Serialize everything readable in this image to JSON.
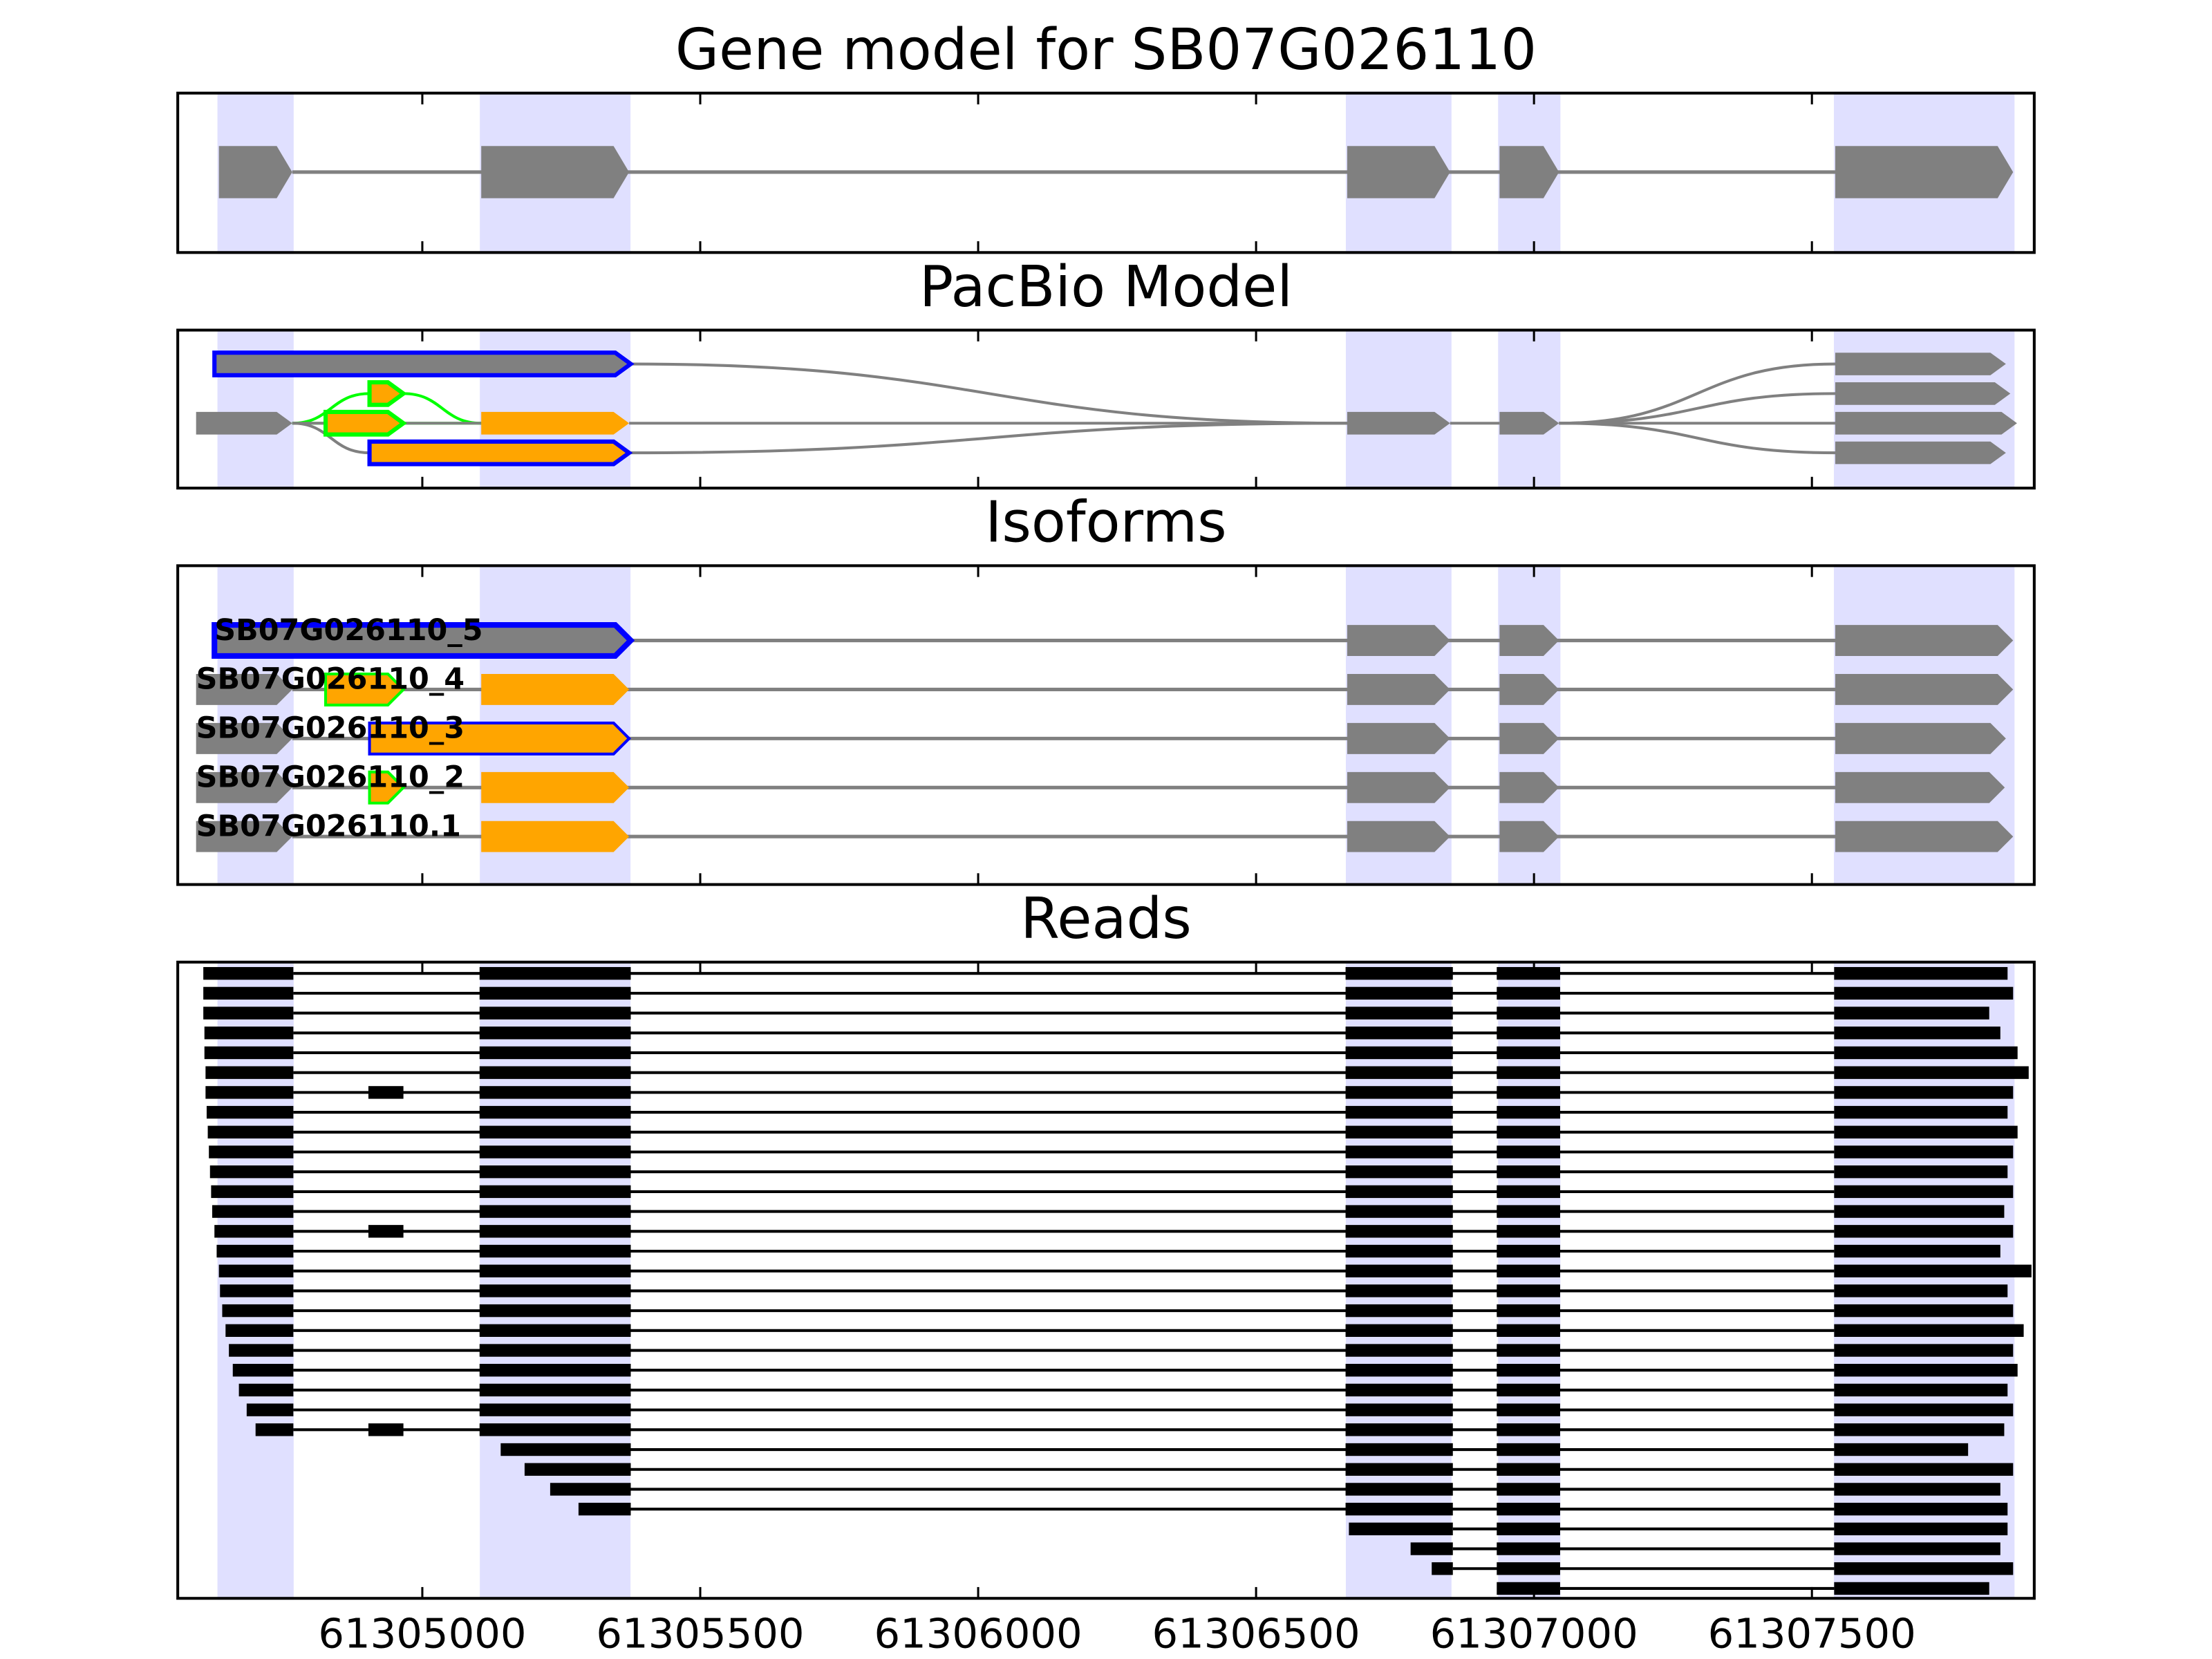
{
  "chart_data": {
    "type": "gene_track",
    "xlim": [
      61304560,
      61307900
    ],
    "xticks": [
      61305000,
      61305500,
      61306000,
      61306500,
      61307000,
      61307500
    ],
    "shade_color": "#e0e0ff",
    "gene_model": {
      "title": "Gene model for SB07G026110",
      "color": "#808080",
      "exons": [
        {
          "start": 61304634,
          "end": 61304766
        },
        {
          "start": 61305106,
          "end": 61305372
        },
        {
          "start": 61306664,
          "end": 61306849
        },
        {
          "start": 61306938,
          "end": 61307045
        },
        {
          "start": 61307542,
          "end": 61307862
        }
      ]
    },
    "pacbio": {
      "title": "PacBio Model",
      "exons": [
        {
          "start": 61304626,
          "end": 61305375,
          "lane": -2,
          "fill": "#808080",
          "edge": "#0000ff"
        },
        {
          "start": 61304905,
          "end": 61304966,
          "lane": -1,
          "fill": "#ffa500",
          "edge": "#00ff00"
        },
        {
          "start": 61304593,
          "end": 61304766,
          "lane": 0,
          "fill": "#808080"
        },
        {
          "start": 61304826,
          "end": 61304966,
          "lane": 0,
          "fill": "#ffa500",
          "edge": "#00ff00"
        },
        {
          "start": 61305106,
          "end": 61305372,
          "lane": 0,
          "fill": "#ffa500"
        },
        {
          "start": 61304905,
          "end": 61305372,
          "lane": 1,
          "fill": "#ffa500",
          "edge": "#0000ff"
        },
        {
          "start": 61306664,
          "end": 61306849,
          "lane": 0,
          "fill": "#808080"
        },
        {
          "start": 61306938,
          "end": 61307045,
          "lane": 0,
          "fill": "#808080"
        },
        {
          "start": 61307542,
          "end": 61307849,
          "lane": -2,
          "fill": "#808080"
        },
        {
          "start": 61307542,
          "end": 61307857,
          "lane": -1,
          "fill": "#808080"
        },
        {
          "start": 61307542,
          "end": 61307869,
          "lane": 0,
          "fill": "#808080"
        },
        {
          "start": 61307542,
          "end": 61307849,
          "lane": 1,
          "fill": "#808080"
        }
      ],
      "edges": [
        {
          "from": 0,
          "to": 6,
          "color": "#808080"
        },
        {
          "from": 2,
          "to": 1,
          "color": "#00ff00"
        },
        {
          "from": 2,
          "to": 3,
          "color": "#00ff00"
        },
        {
          "from": 3,
          "to": 4,
          "color": "#00ff00"
        },
        {
          "from": 1,
          "to": 4,
          "color": "#00ff00"
        },
        {
          "from": 2,
          "to": 5,
          "color": "#808080"
        },
        {
          "from": 2,
          "to": 4,
          "color": "#808080"
        },
        {
          "from": 4,
          "to": 6,
          "color": "#808080"
        },
        {
          "from": 5,
          "to": 6,
          "color": "#808080"
        },
        {
          "from": 6,
          "to": 7,
          "color": "#808080"
        },
        {
          "from": 7,
          "to": 8,
          "color": "#808080"
        },
        {
          "from": 7,
          "to": 9,
          "color": "#808080"
        },
        {
          "from": 7,
          "to": 10,
          "color": "#808080"
        },
        {
          "from": 7,
          "to": 11,
          "color": "#808080"
        }
      ]
    },
    "isoforms": {
      "title": "Isoforms",
      "intron_color": "#808080",
      "items": [
        {
          "name": "SB07G026110_5",
          "exons": [
            {
              "start": 61304626,
              "end": 61305375,
              "fill": "#808080",
              "edge": "#0000ff"
            },
            {
              "start": 61306664,
              "end": 61306849,
              "fill": "#808080"
            },
            {
              "start": 61306938,
              "end": 61307045,
              "fill": "#808080"
            },
            {
              "start": 61307542,
              "end": 61307862,
              "fill": "#808080"
            }
          ]
        },
        {
          "name": "SB07G026110_4",
          "exons": [
            {
              "start": 61304593,
              "end": 61304766,
              "fill": "#808080"
            },
            {
              "start": 61304826,
              "end": 61304966,
              "fill": "#ffa500",
              "edge": "#00ff00"
            },
            {
              "start": 61305106,
              "end": 61305372,
              "fill": "#ffa500"
            },
            {
              "start": 61306664,
              "end": 61306849,
              "fill": "#808080"
            },
            {
              "start": 61306938,
              "end": 61307045,
              "fill": "#808080"
            },
            {
              "start": 61307542,
              "end": 61307862,
              "fill": "#808080"
            }
          ]
        },
        {
          "name": "SB07G026110_3",
          "exons": [
            {
              "start": 61304593,
              "end": 61304766,
              "fill": "#808080"
            },
            {
              "start": 61304905,
              "end": 61305372,
              "fill": "#ffa500",
              "edge": "#0000ff"
            },
            {
              "start": 61306664,
              "end": 61306849,
              "fill": "#808080"
            },
            {
              "start": 61306938,
              "end": 61307045,
              "fill": "#808080"
            },
            {
              "start": 61307542,
              "end": 61307849,
              "fill": "#808080"
            }
          ]
        },
        {
          "name": "SB07G026110_2",
          "exons": [
            {
              "start": 61304593,
              "end": 61304766,
              "fill": "#808080"
            },
            {
              "start": 61304905,
              "end": 61304966,
              "fill": "#ffa500",
              "edge": "#00ff00"
            },
            {
              "start": 61305106,
              "end": 61305372,
              "fill": "#ffa500"
            },
            {
              "start": 61306664,
              "end": 61306849,
              "fill": "#808080"
            },
            {
              "start": 61306938,
              "end": 61307045,
              "fill": "#808080"
            },
            {
              "start": 61307542,
              "end": 61307847,
              "fill": "#808080"
            }
          ]
        },
        {
          "name": "SB07G026110.1",
          "exons": [
            {
              "start": 61304593,
              "end": 61304766,
              "fill": "#808080"
            },
            {
              "start": 61305106,
              "end": 61305372,
              "fill": "#ffa500"
            },
            {
              "start": 61306664,
              "end": 61306849,
              "fill": "#808080"
            },
            {
              "start": 61306938,
              "end": 61307045,
              "fill": "#808080"
            },
            {
              "start": 61307542,
              "end": 61307862,
              "fill": "#808080"
            }
          ]
        }
      ]
    },
    "reads": {
      "title": "Reads",
      "color": "#000000",
      "items": [
        [
          [
            61304606,
            61304768
          ],
          [
            61305103,
            61305375
          ],
          [
            61306661,
            61306854
          ],
          [
            61306933,
            61307047
          ],
          [
            61307540,
            61307852
          ]
        ],
        [
          [
            61304606,
            61304768
          ],
          [
            61305103,
            61305375
          ],
          [
            61306661,
            61306854
          ],
          [
            61306933,
            61307047
          ],
          [
            61307540,
            61307862
          ]
        ],
        [
          [
            61304606,
            61304768
          ],
          [
            61305103,
            61305375
          ],
          [
            61306661,
            61306854
          ],
          [
            61306933,
            61307047
          ],
          [
            61307540,
            61307819
          ]
        ],
        [
          [
            61304608,
            61304768
          ],
          [
            61305103,
            61305375
          ],
          [
            61306661,
            61306854
          ],
          [
            61306933,
            61307047
          ],
          [
            61307540,
            61307839
          ]
        ],
        [
          [
            61304608,
            61304768
          ],
          [
            61305103,
            61305375
          ],
          [
            61306661,
            61306854
          ],
          [
            61306933,
            61307047
          ],
          [
            61307540,
            61307870
          ]
        ],
        [
          [
            61304610,
            61304768
          ],
          [
            61305103,
            61305375
          ],
          [
            61306661,
            61306854
          ],
          [
            61306933,
            61307047
          ],
          [
            61307540,
            61307890
          ]
        ],
        [
          [
            61304610,
            61304768
          ],
          [
            61304903,
            61304966
          ],
          [
            61305103,
            61305375
          ],
          [
            61306661,
            61306854
          ],
          [
            61306933,
            61307047
          ],
          [
            61307540,
            61307862
          ]
        ],
        [
          [
            61304612,
            61304768
          ],
          [
            61305103,
            61305375
          ],
          [
            61306661,
            61306854
          ],
          [
            61306933,
            61307047
          ],
          [
            61307540,
            61307852
          ]
        ],
        [
          [
            61304614,
            61304768
          ],
          [
            61305103,
            61305375
          ],
          [
            61306661,
            61306854
          ],
          [
            61306933,
            61307047
          ],
          [
            61307540,
            61307870
          ]
        ],
        [
          [
            61304616,
            61304768
          ],
          [
            61305103,
            61305375
          ],
          [
            61306661,
            61306854
          ],
          [
            61306933,
            61307047
          ],
          [
            61307540,
            61307862
          ]
        ],
        [
          [
            61304618,
            61304768
          ],
          [
            61305103,
            61305375
          ],
          [
            61306661,
            61306854
          ],
          [
            61306933,
            61307047
          ],
          [
            61307540,
            61307852
          ]
        ],
        [
          [
            61304620,
            61304768
          ],
          [
            61305103,
            61305375
          ],
          [
            61306661,
            61306854
          ],
          [
            61306933,
            61307047
          ],
          [
            61307540,
            61307862
          ]
        ],
        [
          [
            61304622,
            61304768
          ],
          [
            61305103,
            61305375
          ],
          [
            61306661,
            61306854
          ],
          [
            61306933,
            61307047
          ],
          [
            61307540,
            61307846
          ]
        ],
        [
          [
            61304626,
            61304768
          ],
          [
            61304903,
            61304966
          ],
          [
            61305103,
            61305375
          ],
          [
            61306661,
            61306854
          ],
          [
            61306933,
            61307047
          ],
          [
            61307540,
            61307862
          ]
        ],
        [
          [
            61304630,
            61304768
          ],
          [
            61305103,
            61305375
          ],
          [
            61306661,
            61306854
          ],
          [
            61306933,
            61307047
          ],
          [
            61307540,
            61307839
          ]
        ],
        [
          [
            61304634,
            61304768
          ],
          [
            61305103,
            61305375
          ],
          [
            61306661,
            61306854
          ],
          [
            61306933,
            61307047
          ],
          [
            61307540,
            61307895
          ]
        ],
        [
          [
            61304636,
            61304768
          ],
          [
            61305103,
            61305375
          ],
          [
            61306661,
            61306854
          ],
          [
            61306933,
            61307047
          ],
          [
            61307540,
            61307852
          ]
        ],
        [
          [
            61304640,
            61304768
          ],
          [
            61305103,
            61305375
          ],
          [
            61306661,
            61306854
          ],
          [
            61306933,
            61307047
          ],
          [
            61307540,
            61307862
          ]
        ],
        [
          [
            61304646,
            61304768
          ],
          [
            61305103,
            61305375
          ],
          [
            61306661,
            61306854
          ],
          [
            61306933,
            61307047
          ],
          [
            61307540,
            61307881
          ]
        ],
        [
          [
            61304652,
            61304768
          ],
          [
            61305103,
            61305375
          ],
          [
            61306661,
            61306854
          ],
          [
            61306933,
            61307047
          ],
          [
            61307540,
            61307862
          ]
        ],
        [
          [
            61304659,
            61304768
          ],
          [
            61305103,
            61305375
          ],
          [
            61306661,
            61306854
          ],
          [
            61306933,
            61307047
          ],
          [
            61307540,
            61307870
          ]
        ],
        [
          [
            61304670,
            61304768
          ],
          [
            61305103,
            61305375
          ],
          [
            61306661,
            61306854
          ],
          [
            61306933,
            61307047
          ],
          [
            61307540,
            61307852
          ]
        ],
        [
          [
            61304684,
            61304768
          ],
          [
            61305103,
            61305375
          ],
          [
            61306661,
            61306854
          ],
          [
            61306933,
            61307047
          ],
          [
            61307540,
            61307862
          ]
        ],
        [
          [
            61304700,
            61304768
          ],
          [
            61304903,
            61304966
          ],
          [
            61305103,
            61305375
          ],
          [
            61306661,
            61306854
          ],
          [
            61306933,
            61307047
          ],
          [
            61307540,
            61307846
          ]
        ],
        [
          [
            61305141,
            61305375
          ],
          [
            61306661,
            61306854
          ],
          [
            61306933,
            61307047
          ],
          [
            61307540,
            61307781
          ]
        ],
        [
          [
            61305184,
            61305375
          ],
          [
            61306661,
            61306854
          ],
          [
            61306933,
            61307047
          ],
          [
            61307540,
            61307862
          ]
        ],
        [
          [
            61305230,
            61305375
          ],
          [
            61306661,
            61306854
          ],
          [
            61306933,
            61307047
          ],
          [
            61307540,
            61307839
          ]
        ],
        [
          [
            61305281,
            61305375
          ],
          [
            61306661,
            61306854
          ],
          [
            61306933,
            61307047
          ],
          [
            61307540,
            61307852
          ]
        ],
        [
          [
            61306667,
            61306854
          ],
          [
            61306933,
            61307047
          ],
          [
            61307540,
            61307852
          ]
        ],
        [
          [
            61306778,
            61306854
          ],
          [
            61306933,
            61307047
          ],
          [
            61307540,
            61307839
          ]
        ],
        [
          [
            61306816,
            61306854
          ],
          [
            61306933,
            61307047
          ],
          [
            61307540,
            61307862
          ]
        ],
        [
          [
            61306933,
            61307047
          ],
          [
            61307540,
            61307819
          ]
        ]
      ]
    }
  }
}
